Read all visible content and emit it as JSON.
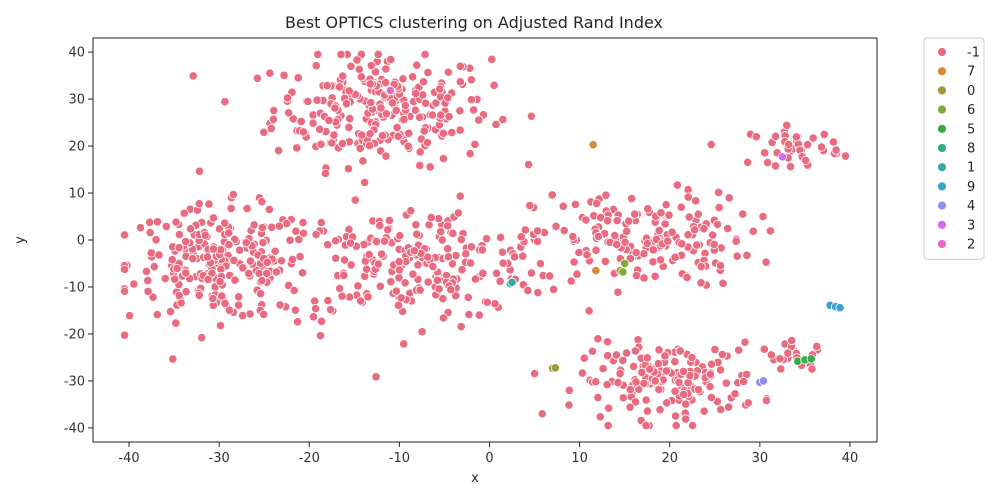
{
  "chart_data": {
    "type": "scatter",
    "title": "Best OPTICS clustering on Adjusted Rand Index",
    "xlabel": "x",
    "ylabel": "y",
    "xlim": [
      -44,
      43
    ],
    "ylim": [
      -43,
      43
    ],
    "xticks": [
      -40,
      -30,
      -20,
      -10,
      0,
      10,
      20,
      30,
      40
    ],
    "yticks": [
      -40,
      -30,
      -20,
      -10,
      0,
      10,
      20,
      30,
      40
    ],
    "grid": false,
    "legend_position": "outside-top-right",
    "legend": [
      {
        "label": "-1",
        "color": "#ea6a80"
      },
      {
        "label": "7",
        "color": "#d98a35"
      },
      {
        "label": "0",
        "color": "#a09a33"
      },
      {
        "label": "6",
        "color": "#80ab32"
      },
      {
        "label": "5",
        "color": "#34ad4a"
      },
      {
        "label": "8",
        "color": "#35ab8c"
      },
      {
        "label": "1",
        "color": "#38a7a7"
      },
      {
        "label": "9",
        "color": "#3aa1d0"
      },
      {
        "label": "4",
        "color": "#8e8ff0"
      },
      {
        "label": "3",
        "color": "#d46aee"
      },
      {
        "label": "2",
        "color": "#ea68c4"
      }
    ],
    "noise_clusters": [
      {
        "cx": -12,
        "cy": 28,
        "sx": 6,
        "sy": 6,
        "n": 260
      },
      {
        "cx": -30,
        "cy": -5,
        "sx": 5,
        "sy": 6,
        "n": 230
      },
      {
        "cx": -8,
        "cy": -5,
        "sx": 8,
        "sy": 6,
        "n": 240
      },
      {
        "cx": 17,
        "cy": 0,
        "sx": 6,
        "sy": 5,
        "n": 170
      },
      {
        "cx": 20,
        "cy": -30,
        "sx": 5,
        "sy": 4,
        "n": 170
      },
      {
        "cx": 34,
        "cy": 20,
        "sx": 2.5,
        "sy": 2,
        "n": 40
      },
      {
        "cx": 34,
        "cy": -25,
        "sx": 2,
        "sy": 1.5,
        "n": 20
      }
    ],
    "labeled_points": [
      {
        "label": "7",
        "x": 11.5,
        "y": 20.3
      },
      {
        "label": "7",
        "x": 11.8,
        "y": -6.5
      },
      {
        "label": "0",
        "x": 7.0,
        "y": -27.3
      },
      {
        "label": "0",
        "x": 7.3,
        "y": -27.2
      },
      {
        "label": "0",
        "x": 14.5,
        "y": -6.5
      },
      {
        "label": "6",
        "x": 15.0,
        "y": -5.0
      },
      {
        "label": "6",
        "x": 14.8,
        "y": -6.8
      },
      {
        "label": "5",
        "x": 34.2,
        "y": -25.8
      },
      {
        "label": "5",
        "x": 35.0,
        "y": -25.5
      },
      {
        "label": "5",
        "x": 35.7,
        "y": -25.3
      },
      {
        "label": "8",
        "x": 2.3,
        "y": -9.3
      },
      {
        "label": "1",
        "x": 2.5,
        "y": -9.0
      },
      {
        "label": "9",
        "x": 37.8,
        "y": -13.9
      },
      {
        "label": "9",
        "x": 38.4,
        "y": -14.2
      },
      {
        "label": "9",
        "x": 38.9,
        "y": -14.4
      },
      {
        "label": "4",
        "x": 30.0,
        "y": -30.3
      },
      {
        "label": "4",
        "x": 30.4,
        "y": -30.0
      },
      {
        "label": "3",
        "x": 32.5,
        "y": 17.7
      },
      {
        "label": "2",
        "x": -11.0,
        "y": 31.8
      }
    ]
  }
}
